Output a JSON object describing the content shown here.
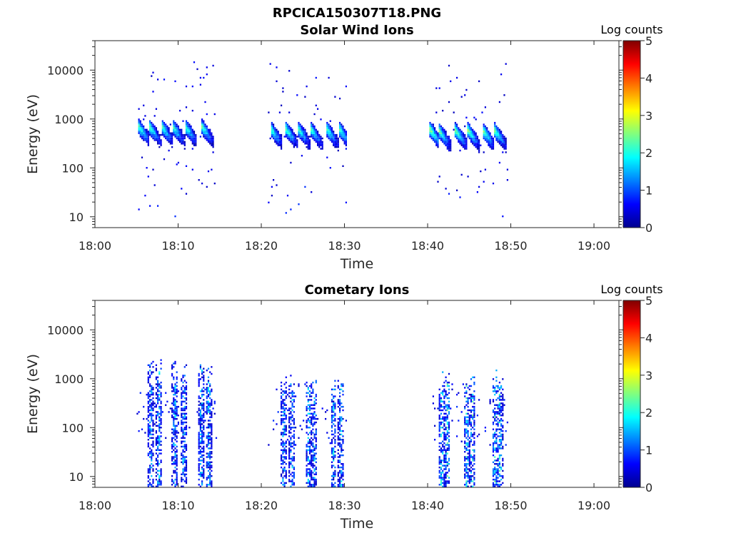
{
  "figure": {
    "title": "RPCICA150307T18.PNG"
  },
  "chart_data": [
    {
      "type": "heatmap",
      "title": "Solar Wind Ions",
      "xlabel": "Time",
      "ylabel": "Energy (eV)",
      "x_unit": "minutes after 18:00",
      "xlim": [
        0,
        63
      ],
      "xticks": [
        0,
        10,
        20,
        30,
        40,
        50,
        60
      ],
      "xtick_labels": [
        "18:00",
        "18:10",
        "18:20",
        "18:30",
        "18:40",
        "18:50",
        "19:00"
      ],
      "ylim": [
        6,
        40000
      ],
      "yscale": "log",
      "yticks": [
        10,
        100,
        1000,
        10000
      ],
      "ytick_labels": [
        "10",
        "100",
        "1000",
        "10000"
      ],
      "colorbar": {
        "label": "Log counts",
        "range": [
          0,
          5
        ],
        "ticks": [
          "0",
          "1",
          "2",
          "3",
          "4",
          "5"
        ],
        "colormap": "jet"
      },
      "bursts": [
        {
          "start": 5,
          "end": 14.5,
          "sweeps": [
            5.2,
            6.5,
            8.0,
            9.3,
            10.8,
            12.8
          ],
          "peak_energy": 500,
          "peak_log_counts": 2.4
        },
        {
          "start": 20.8,
          "end": 30.3,
          "sweeps": [
            21.1,
            22.9,
            24.4,
            25.9,
            27.8,
            29.3
          ],
          "peak_energy": 450,
          "peak_log_counts": 2.4
        },
        {
          "start": 40.2,
          "end": 49.6,
          "sweeps": [
            40.3,
            41.3,
            43.3,
            44.8,
            46.6,
            48.0
          ],
          "peak_energy": 420,
          "peak_log_counts": 2.6
        }
      ]
    },
    {
      "type": "heatmap",
      "title": "Cometary Ions",
      "xlabel": "Time",
      "ylabel": "Energy (eV)",
      "x_unit": "minutes after 18:00",
      "xlim": [
        0,
        63
      ],
      "xticks": [
        0,
        10,
        20,
        30,
        40,
        50,
        60
      ],
      "xtick_labels": [
        "18:00",
        "18:10",
        "18:20",
        "18:30",
        "18:40",
        "18:50",
        "19:00"
      ],
      "ylim": [
        6,
        40000
      ],
      "yscale": "log",
      "yticks": [
        10,
        100,
        1000,
        10000
      ],
      "ytick_labels": [
        "10",
        "100",
        "1000",
        "10000"
      ],
      "colorbar": {
        "label": "Log counts",
        "range": [
          0,
          5
        ],
        "ticks": [
          "0",
          "1",
          "2",
          "3",
          "4",
          "5"
        ],
        "colormap": "jet"
      },
      "bursts": [
        {
          "start": 5,
          "end": 14.5,
          "columns": [
            6.6,
            7.6,
            9.5,
            10.6,
            12.7,
            13.6
          ],
          "energy_range": [
            8,
            2500
          ],
          "peak_log_counts": 2.2
        },
        {
          "start": 20.8,
          "end": 30.3,
          "columns": [
            22.6,
            23.6,
            25.6,
            26.3,
            28.6,
            29.5
          ],
          "energy_range": [
            8,
            1200
          ],
          "peak_log_counts": 2.2
        },
        {
          "start": 40.2,
          "end": 49.6,
          "columns": [
            41.6,
            42.3,
            44.6,
            45.3,
            48.0,
            48.6
          ],
          "energy_range": [
            7,
            1500
          ],
          "peak_log_counts": 2.6
        }
      ]
    }
  ]
}
